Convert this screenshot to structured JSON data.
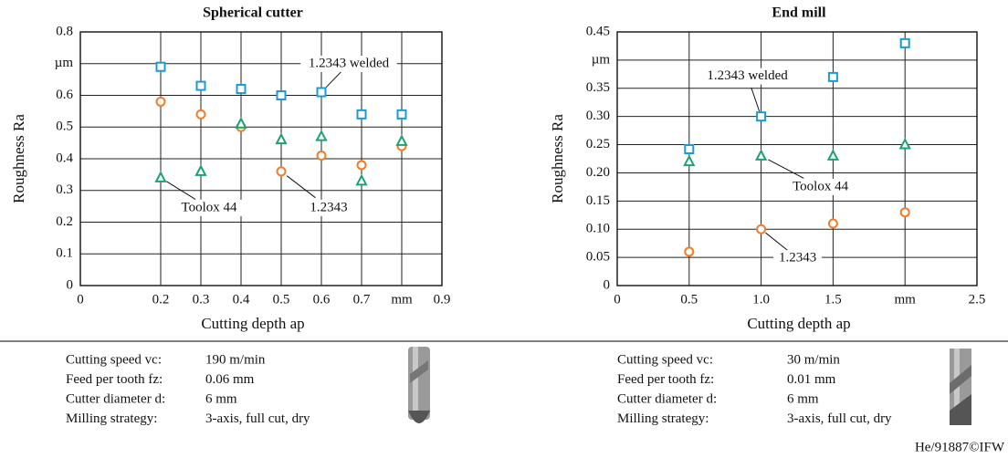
{
  "chart_data": [
    {
      "type": "scatter",
      "title": "Spherical cutter",
      "x_label": "Cutting depth ap",
      "y_label": "Roughness Ra",
      "xlim": [
        0,
        0.9
      ],
      "xticks": [
        0,
        0.2,
        0.3,
        0.4,
        0.5,
        0.6,
        0.7,
        {
          "value": 0.8,
          "label": "mm"
        },
        0.9
      ],
      "ylim": [
        0,
        0.8
      ],
      "yticks": [
        0,
        0.1,
        0.2,
        0.3,
        0.4,
        0.5,
        0.6,
        {
          "value": 0.7,
          "label": "µm"
        },
        0.8
      ],
      "grid": true,
      "x": [
        0.2,
        0.3,
        0.4,
        0.5,
        0.6,
        0.7,
        0.8
      ],
      "series": [
        {
          "name": "1.2343 welded",
          "color": "#1c9ad8",
          "marker": "square",
          "values": [
            0.69,
            0.63,
            0.62,
            0.6,
            0.61,
            0.54,
            0.54
          ]
        },
        {
          "name": "1.2343",
          "color": "#f27c2a",
          "marker": "circle",
          "values": [
            0.58,
            0.54,
            0.5,
            0.36,
            0.41,
            0.38,
            0.44
          ]
        },
        {
          "name": "Toolox 44",
          "color": "#1aa36f",
          "marker": "triangle",
          "values": [
            0.34,
            0.36,
            0.51,
            0.46,
            0.47,
            0.33,
            0.455
          ]
        }
      ],
      "parameters": [
        {
          "label": "Cutting speed vc:",
          "value": "190 m/min"
        },
        {
          "label": "Feed per tooth fz:",
          "value": "0.06 mm"
        },
        {
          "label": "Cutter diameter d:",
          "value": "6 mm"
        },
        {
          "label": "Milling strategy:",
          "value": "3-axis, full cut, dry"
        }
      ]
    },
    {
      "type": "scatter",
      "title": "End mill",
      "x_label": "Cutting depth ap",
      "y_label": "Roughness Ra",
      "xlim": [
        0,
        2.5
      ],
      "xticks": [
        0,
        0.5,
        {
          "value": 1.0,
          "label": "1.0"
        },
        1.5,
        {
          "value": 2.0,
          "label": "mm"
        },
        2.5
      ],
      "ylim": [
        0,
        0.45
      ],
      "yticks": [
        0,
        0.05,
        {
          "value": 0.1,
          "label": "0.10"
        },
        0.15,
        {
          "value": 0.2,
          "label": "0.20"
        },
        0.25,
        {
          "value": 0.3,
          "label": "0.30"
        },
        0.35,
        {
          "value": 0.4,
          "label": "µm"
        },
        0.45
      ],
      "grid": true,
      "x": [
        0.5,
        1.0,
        1.5,
        2.0
      ],
      "series": [
        {
          "name": "1.2343 welded",
          "color": "#1c9ad8",
          "marker": "square",
          "values": [
            0.242,
            0.3,
            0.37,
            0.43
          ]
        },
        {
          "name": "1.2343",
          "color": "#f27c2a",
          "marker": "circle",
          "values": [
            0.06,
            0.1,
            0.11,
            0.13
          ]
        },
        {
          "name": "Toolox 44",
          "color": "#1aa36f",
          "marker": "triangle",
          "values": [
            0.22,
            0.23,
            0.23,
            0.25
          ]
        }
      ],
      "parameters": [
        {
          "label": "Cutting speed vc:",
          "value": "30 m/min"
        },
        {
          "label": "Feed per tooth fz:",
          "value": "0.01 mm"
        },
        {
          "label": "Cutter diameter d:",
          "value": "6 mm"
        },
        {
          "label": "Milling strategy:",
          "value": "3-axis, full cut, dry"
        }
      ]
    }
  ],
  "credit": "He/91887©IFW"
}
